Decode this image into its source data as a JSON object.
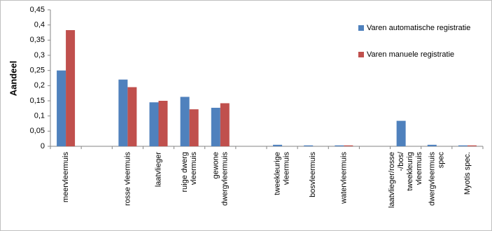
{
  "chart_data": {
    "type": "bar",
    "y_label": "Aandeel",
    "categories": [
      "meervleermuis",
      null,
      "rosse vleermuis",
      "laatvlieger",
      "ruige dwerg vleermuis",
      "gewone dwergvleermuis",
      null,
      "tweekleurige vleermuis",
      "bosvleermuis",
      "watervleermuis",
      null,
      "laatvlieger/rosse -/bos/ tweekleurig vleermuis",
      "dwergvleermuis spec",
      "Myotis spec."
    ],
    "series": [
      {
        "name": "Varen automatische registratie",
        "color": "#4f81bd",
        "values": [
          0.25,
          null,
          0.22,
          0.145,
          0.163,
          0.127,
          null,
          0.005,
          0.003,
          0.003,
          null,
          0.084,
          0.005,
          0.003
        ]
      },
      {
        "name": "Varen manuele registratie",
        "color": "#c0504d",
        "values": [
          0.383,
          null,
          0.195,
          0.15,
          0.122,
          0.142,
          null,
          0,
          0,
          0.003,
          null,
          0,
          0,
          0.003
        ]
      }
    ],
    "ylim": [
      0,
      0.45
    ],
    "yticks": [
      0,
      {
        "value": 0.05,
        "label": "0,05"
      },
      {
        "value": 0.1,
        "label": "0,1"
      },
      {
        "value": 0.15,
        "label": "0,15"
      },
      {
        "value": 0.2,
        "label": "0,2"
      },
      {
        "value": 0.25,
        "label": "0,25"
      },
      {
        "value": 0.3,
        "label": "0,3"
      },
      {
        "value": 0.35,
        "label": "0,35"
      },
      {
        "value": 0.4,
        "label": "0,4"
      },
      {
        "value": 0.45,
        "label": "0,45"
      }
    ],
    "grid": false,
    "legend": "right"
  }
}
